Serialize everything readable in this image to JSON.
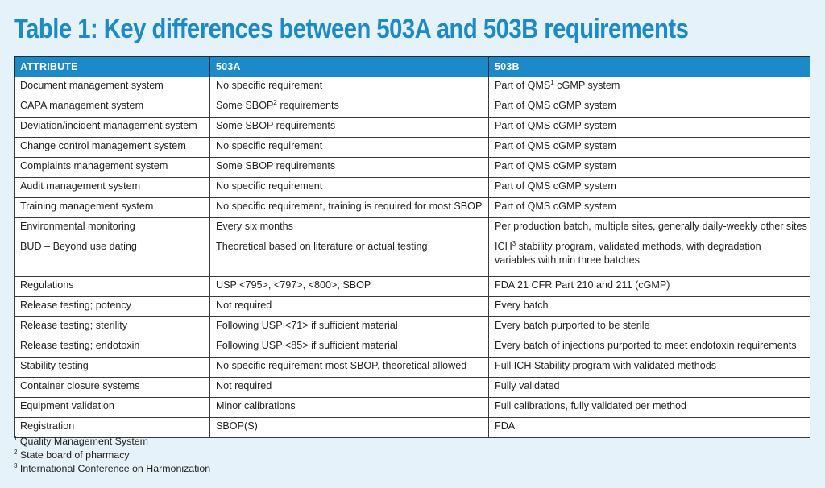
{
  "title": "Table 1: Key differences between 503A and 503B requirements",
  "headers": [
    "ATTRIBUTE",
    "503A",
    "503B"
  ],
  "rows": [
    {
      "attr": "Document management system",
      "a": "No specific requirement",
      "b_pre": "Part of QMS",
      "b_sup": "1",
      "b_post": " cGMP system"
    },
    {
      "attr": "CAPA management system",
      "a_pre": "Some SBOP",
      "a_sup": "2",
      "a_post": " requirements",
      "b": "Part of QMS cGMP system"
    },
    {
      "attr": "Deviation/incident management system",
      "a": "Some SBOP requirements",
      "b": "Part of QMS cGMP system"
    },
    {
      "attr": "Change control management system",
      "a": "No specific requirement",
      "b": "Part of QMS cGMP system"
    },
    {
      "attr": "Complaints management system",
      "a": "Some SBOP requirements",
      "b": "Part of QMS cGMP system"
    },
    {
      "attr": "Audit management system",
      "a": "No specific requirement",
      "b": "Part of QMS cGMP system"
    },
    {
      "attr": "Training management system",
      "a": "No specific requirement, training is required for most SBOP",
      "b": "Part of QMS cGMP system"
    },
    {
      "attr": "Environmental monitoring",
      "a": "Every six months",
      "b": "Per production batch, multiple sites, generally daily-weekly other sites"
    },
    {
      "attr": "BUD – Beyond use dating",
      "a": "Theoretical based on literature or actual testing",
      "b_pre": "ICH",
      "b_sup": "3",
      "b_post": " stability program, validated methods, with degradation variables with min three batches"
    },
    {
      "attr": "Regulations",
      "a": "USP <795>, <797>, <800>, SBOP",
      "b": "FDA 21 CFR Part 210 and 211 (cGMP)"
    },
    {
      "attr": "Release testing; potency",
      "a": "Not required",
      "b": "Every batch"
    },
    {
      "attr": "Release testing; sterility",
      "a": "Following USP <71> if sufficient material",
      "b": "Every batch purported to be sterile"
    },
    {
      "attr": "Release testing; endotoxin",
      "a": "Following USP <85> if sufficient material",
      "b": "Every batch of injections purported to meet endotoxin requirements"
    },
    {
      "attr": "Stability testing",
      "a": "No specific requirement most SBOP, theoretical allowed",
      "b": "Full ICH Stability program with validated methods"
    },
    {
      "attr": "Container closure systems",
      "a": "Not required",
      "b": "Fully validated"
    },
    {
      "attr": "Equipment validation",
      "a": "Minor calibrations",
      "b": "Full calibrations, fully validated per method"
    },
    {
      "attr": "Registration",
      "a": "SBOP(S)",
      "b": "FDA"
    }
  ],
  "footnotes": [
    {
      "num": "1",
      "text": " Quality Management System"
    },
    {
      "num": "2",
      "text": " State board of pharmacy"
    },
    {
      "num": "3",
      "text": " International Conference on Harmonization"
    }
  ],
  "colors": {
    "accent": "#1c8ac8",
    "background": "#e6f2f9"
  }
}
